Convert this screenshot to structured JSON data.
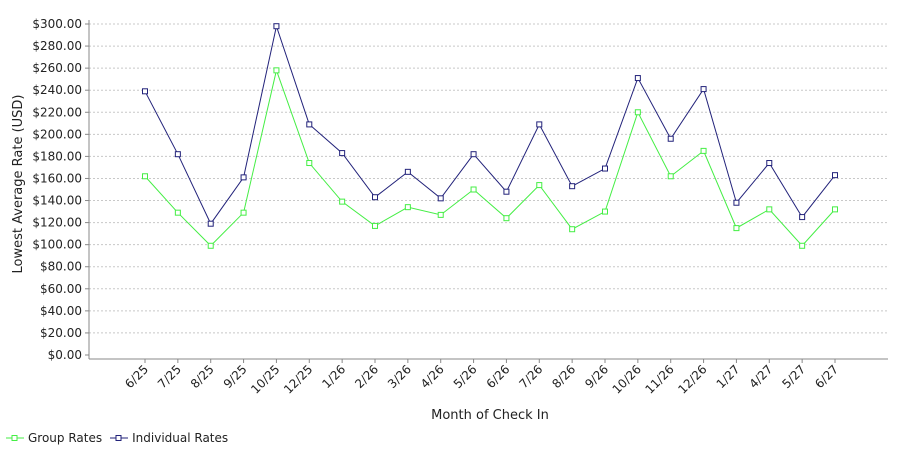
{
  "chart_data": {
    "type": "line",
    "title": "",
    "xlabel": "Month of Check In",
    "ylabel": "Lowest Average Rate (USD)",
    "ylim": [
      0,
      300
    ],
    "y_ticks": [
      "$0.00",
      "$20.00",
      "$40.00",
      "$60.00",
      "$80.00",
      "$100.00",
      "$120.00",
      "$140.00",
      "$160.00",
      "$180.00",
      "$200.00",
      "$220.00",
      "$240.00",
      "$260.00",
      "$280.00",
      "$300.00"
    ],
    "grid": true,
    "legend_position": "bottom-left",
    "categories": [
      "6/25",
      "7/25",
      "8/25",
      "9/25",
      "10/25",
      "12/25",
      "1/26",
      "2/26",
      "3/26",
      "4/26",
      "5/26",
      "6/26",
      "7/26",
      "8/26",
      "9/26",
      "10/26",
      "11/26",
      "12/26",
      "1/27",
      "4/27",
      "5/27",
      "6/27"
    ],
    "series": [
      {
        "name": "Group Rates",
        "color": "#44ee44",
        "values": [
          162,
          129,
          99,
          129,
          258,
          174,
          139,
          117,
          134,
          127,
          150,
          124,
          154,
          114,
          130,
          220,
          162,
          185,
          115,
          132,
          99,
          132
        ]
      },
      {
        "name": "Individual Rates",
        "color": "#22227a",
        "values": [
          239,
          182,
          119,
          161,
          298,
          209,
          183,
          143,
          166,
          142,
          182,
          148,
          209,
          153,
          169,
          251,
          196,
          241,
          138,
          174,
          125,
          163
        ]
      }
    ]
  }
}
